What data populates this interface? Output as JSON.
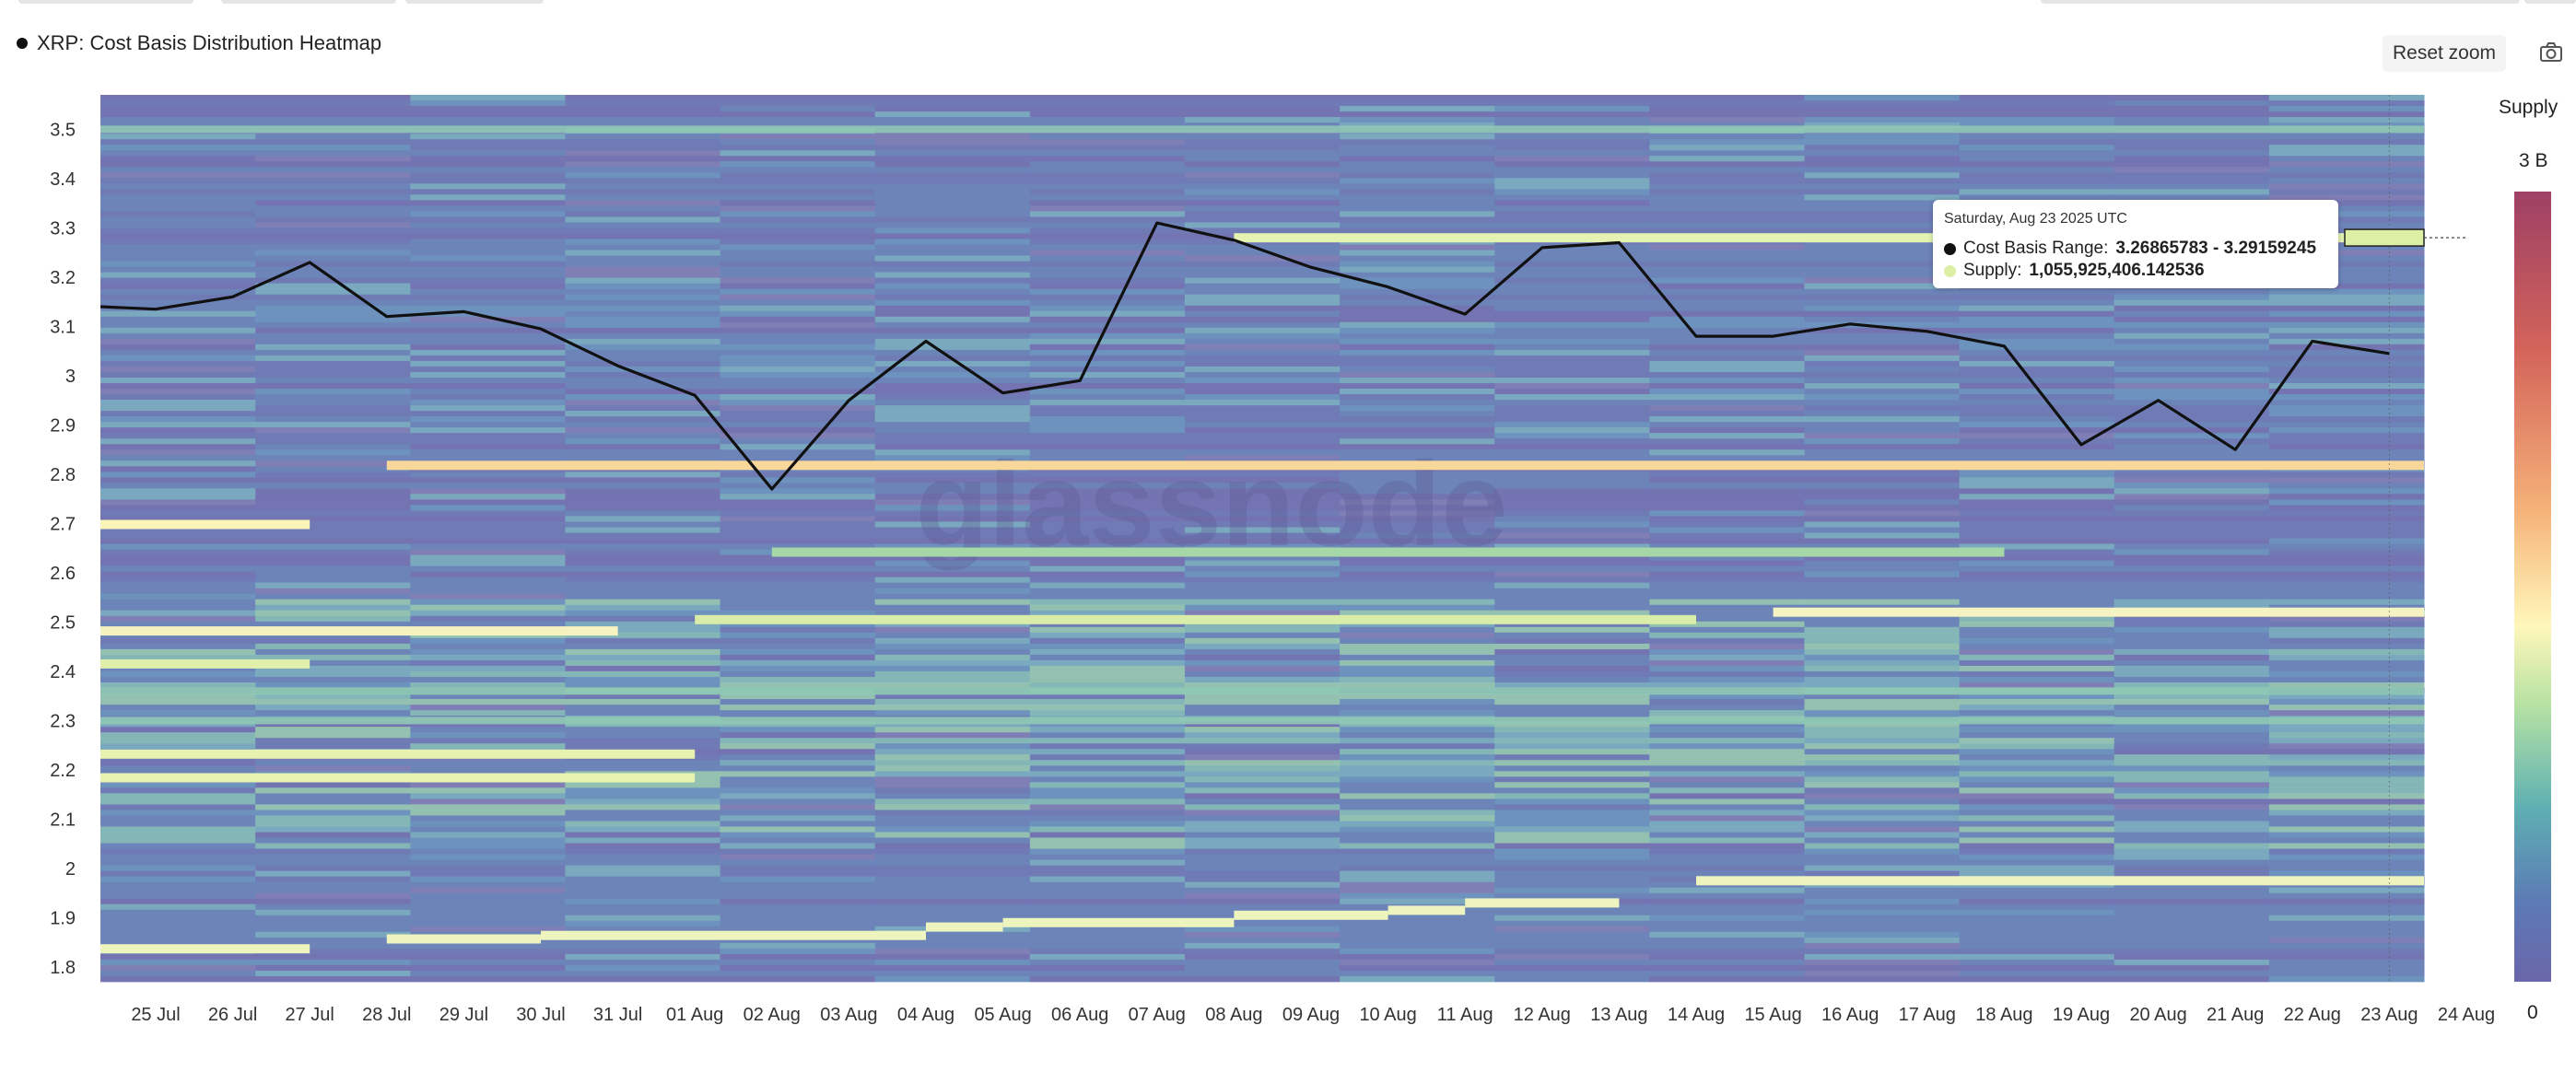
{
  "page": {
    "legend_label": "XRP: Cost Basis Distribution Heatmap",
    "reset_zoom_label": "Reset zoom",
    "camera_icon": "camera-icon",
    "watermark": "glassnode"
  },
  "colorbar": {
    "title": "Supply",
    "max_label": "3 B",
    "min_label": "0",
    "colors": [
      "#9e4065",
      "#d3645a",
      "#f5b178",
      "#fff7ba",
      "#b6e2a3",
      "#5eb0b3",
      "#5c7ab4",
      "#6a66aa"
    ]
  },
  "tooltip": {
    "date": "Saturday, Aug 23 2025 UTC",
    "range_label": "Cost Basis Range:",
    "range_value": "3.26865783 - 3.29159245",
    "supply_label": "Supply:",
    "supply_value": "1,055,925,406.142536"
  },
  "chart_data": {
    "type": "heatmap",
    "title": "XRP: Cost Basis Distribution Heatmap",
    "ylim": [
      1.77,
      3.57
    ],
    "y_ticks": [
      "1.8",
      "1.9",
      "2",
      "2.1",
      "2.2",
      "2.3",
      "2.4",
      "2.5",
      "2.6",
      "2.7",
      "2.8",
      "2.9",
      "3",
      "3.1",
      "3.2",
      "3.3",
      "3.4",
      "3.5"
    ],
    "x_ticks": [
      "25 Jul",
      "26 Jul",
      "27 Jul",
      "28 Jul",
      "29 Jul",
      "30 Jul",
      "31 Jul",
      "01 Aug",
      "02 Aug",
      "03 Aug",
      "04 Aug",
      "05 Aug",
      "06 Aug",
      "07 Aug",
      "08 Aug",
      "09 Aug",
      "10 Aug",
      "11 Aug",
      "12 Aug",
      "13 Aug",
      "14 Aug",
      "15 Aug",
      "16 Aug",
      "17 Aug",
      "18 Aug",
      "19 Aug",
      "20 Aug",
      "21 Aug",
      "22 Aug",
      "23 Aug",
      "24 Aug"
    ],
    "x_range": [
      "24 Jul",
      "23 Aug"
    ],
    "colorbar_range": [
      "0",
      "3 B"
    ],
    "price_series": {
      "name": "XRP",
      "color": "#111111",
      "x": [
        "24 Jul",
        "25 Jul",
        "26 Jul",
        "27 Jul",
        "28 Jul",
        "29 Jul",
        "30 Jul",
        "31 Jul",
        "01 Aug",
        "02 Aug",
        "03 Aug",
        "04 Aug",
        "05 Aug",
        "06 Aug",
        "07 Aug",
        "08 Aug",
        "09 Aug",
        "10 Aug",
        "11 Aug",
        "12 Aug",
        "13 Aug",
        "14 Aug",
        "15 Aug",
        "16 Aug",
        "17 Aug",
        "18 Aug",
        "19 Aug",
        "20 Aug",
        "21 Aug",
        "22 Aug",
        "23 Aug"
      ],
      "y": [
        3.14,
        3.135,
        3.16,
        3.23,
        3.12,
        3.13,
        3.095,
        3.02,
        2.96,
        2.77,
        2.95,
        3.07,
        2.965,
        2.99,
        3.31,
        3.275,
        3.22,
        3.18,
        3.125,
        3.26,
        3.27,
        3.08,
        3.08,
        3.105,
        3.09,
        3.06,
        2.86,
        2.95,
        2.85,
        3.07,
        3.045
      ]
    },
    "highlight_bands": [
      {
        "y": 2.818,
        "from": "28 Jul",
        "to": "23 Aug",
        "color": "#f8d89a"
      },
      {
        "y": 2.698,
        "from": "24 Jul",
        "to": "27 Jul",
        "color": "#fbf5b8"
      },
      {
        "y": 2.482,
        "from": "24 Jul",
        "to": "31 Jul",
        "color": "#f7f3c0"
      },
      {
        "y": 2.415,
        "from": "24 Jul",
        "to": "27 Jul",
        "color": "#e0efaa"
      },
      {
        "y": 2.52,
        "from": "15 Aug",
        "to": "23 Aug",
        "color": "#f6f3c2"
      },
      {
        "y": 2.232,
        "from": "24 Jul",
        "to": "01 Aug",
        "color": "#e8f2b0"
      },
      {
        "y": 2.184,
        "from": "24 Jul",
        "to": "01 Aug",
        "color": "#e8f2b0"
      },
      {
        "y": 1.975,
        "from": "14 Aug",
        "to": "23 Aug",
        "color": "#eef4be"
      },
      {
        "y": 1.837,
        "from": "24 Jul",
        "to": "27 Jul",
        "color": "#eef4be"
      },
      {
        "y": 1.857,
        "from": "28 Jul",
        "to": "30 Jul",
        "color": "#eef4be"
      },
      {
        "y": 1.864,
        "from": "30 Jul",
        "to": "04 Aug",
        "color": "#eef4be"
      },
      {
        "y": 1.881,
        "from": "04 Aug",
        "to": "05 Aug",
        "color": "#eef4be"
      },
      {
        "y": 1.89,
        "from": "05 Aug",
        "to": "08 Aug",
        "color": "#eef4be"
      },
      {
        "y": 1.905,
        "from": "08 Aug",
        "to": "10 Aug",
        "color": "#eef4be"
      },
      {
        "y": 1.915,
        "from": "10 Aug",
        "to": "11 Aug",
        "color": "#eef4be"
      },
      {
        "y": 1.93,
        "from": "11 Aug",
        "to": "13 Aug",
        "color": "#eef4be"
      },
      {
        "y": 2.505,
        "from": "01 Aug",
        "to": "14 Aug",
        "color": "#d9eda9"
      },
      {
        "y": 2.642,
        "from": "02 Aug",
        "to": "18 Aug",
        "color": "#a6d7a7"
      },
      {
        "y": 3.28,
        "from": "08 Aug",
        "to": "23 Aug",
        "color": "#e4f2b2"
      }
    ],
    "hover": {
      "x": "23 Aug",
      "y_range": [
        3.26865783,
        3.29159245
      ],
      "supply": "1,055,925,406.142536"
    }
  }
}
